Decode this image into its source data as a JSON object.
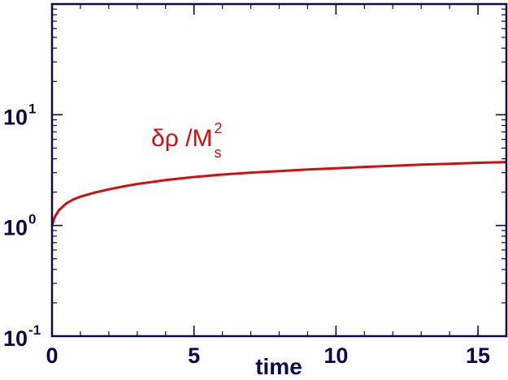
{
  "chart_data": {
    "type": "line",
    "title": "",
    "xlabel": "time",
    "ylabel": "",
    "xlim": [
      0,
      16
    ],
    "ylim": [
      0.1,
      100
    ],
    "yscale": "log",
    "grid": false,
    "legend": "none",
    "x_ticks": [
      0,
      5,
      10,
      15
    ],
    "x_tick_labels": [
      "0",
      "5",
      "10",
      "15"
    ],
    "y_ticks": [
      0.1,
      1,
      10
    ],
    "y_tick_labels": [
      {
        "base": "10",
        "exp": "-1"
      },
      {
        "base": "10",
        "exp": "0"
      },
      {
        "base": "10",
        "exp": "1"
      }
    ],
    "annotation": {
      "delta_rho": "δρ",
      "slash_m": " /M",
      "sup": "2",
      "sub": "s"
    },
    "series": [
      {
        "color": "#d01010",
        "x": [
          0,
          0.1,
          0.25,
          0.5,
          0.75,
          1,
          1.5,
          2,
          2.5,
          3,
          4,
          5,
          6,
          7,
          8,
          9,
          10,
          11,
          12,
          13,
          14,
          15,
          16
        ],
        "y": [
          1.0,
          1.2,
          1.38,
          1.58,
          1.72,
          1.82,
          1.98,
          2.12,
          2.25,
          2.37,
          2.57,
          2.74,
          2.88,
          3.0,
          3.1,
          3.2,
          3.29,
          3.38,
          3.46,
          3.54,
          3.61,
          3.68,
          3.74
        ]
      }
    ]
  },
  "colors": {
    "axis": "#0a0a4a",
    "line": "#d01010",
    "background": "#ffffff"
  }
}
